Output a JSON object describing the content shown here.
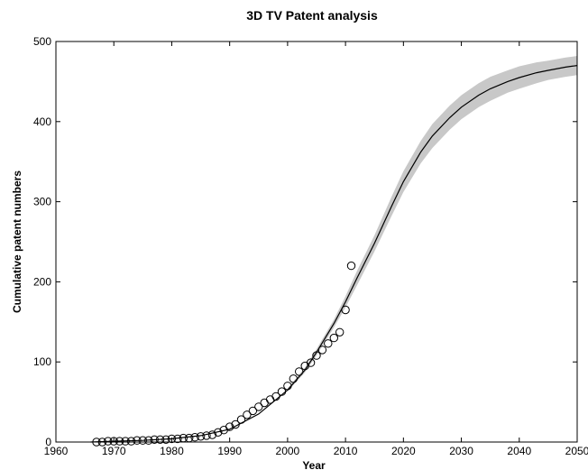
{
  "chart_data": {
    "type": "scatter",
    "title": "3D TV Patent analysis",
    "xlabel": "Year",
    "ylabel": "Cumulative patent numbers",
    "xlim": [
      1960,
      2050
    ],
    "ylim": [
      0,
      500
    ],
    "xticks": [
      1960,
      1970,
      1980,
      1990,
      2000,
      2010,
      2020,
      2030,
      2040,
      2050
    ],
    "yticks": [
      0,
      100,
      200,
      300,
      400,
      500
    ],
    "grid": false,
    "colors": {
      "band": "#c8c8c8",
      "line": "#000000",
      "marker_edge": "#000000"
    },
    "series": [
      {
        "type": "scatter",
        "x": [
          1967,
          1968,
          1969,
          1970,
          1971,
          1972,
          1973,
          1974,
          1975,
          1976,
          1977,
          1978,
          1979,
          1980,
          1981,
          1982,
          1983,
          1984,
          1985,
          1986,
          1987,
          1988,
          1989,
          1990,
          1991,
          1992,
          1993,
          1994,
          1995,
          1996,
          1997,
          1998,
          1999,
          2000,
          2001,
          2002,
          2003,
          2004,
          2005,
          2006,
          2007,
          2008,
          2009,
          2010,
          2011
        ],
        "y": [
          0,
          0,
          1,
          1,
          1,
          1,
          1,
          2,
          2,
          2,
          3,
          3,
          3,
          4,
          4,
          5,
          5,
          6,
          7,
          8,
          9,
          12,
          15,
          19,
          22,
          28,
          34,
          39,
          44,
          49,
          53,
          57,
          63,
          70,
          79,
          88,
          95,
          99,
          108,
          115,
          123,
          130,
          137,
          165,
          220
        ]
      },
      {
        "type": "line",
        "x": [
          1966,
          1970,
          1975,
          1980,
          1985,
          1990,
          1995,
          2000,
          2003,
          2005,
          2008,
          2010,
          2012,
          2015,
          2018,
          2020,
          2023,
          2025,
          2028,
          2030,
          2033,
          2035,
          2038,
          2040,
          2043,
          2045,
          2048,
          2050
        ],
        "y": [
          0,
          1,
          2,
          4,
          8,
          16,
          35,
          65,
          90,
          112,
          148,
          175,
          205,
          248,
          295,
          325,
          362,
          382,
          405,
          418,
          433,
          441,
          450,
          455,
          461,
          464,
          468,
          470
        ]
      },
      {
        "type": "area",
        "x": [
          2000,
          2003,
          2005,
          2008,
          2010,
          2012,
          2015,
          2018,
          2020,
          2023,
          2025,
          2028,
          2030,
          2033,
          2035,
          2038,
          2040,
          2043,
          2045,
          2048,
          2050
        ],
        "lower": [
          63,
          87,
          108,
          143,
          168,
          196,
          238,
          283,
          312,
          348,
          367,
          390,
          403,
          418,
          426,
          436,
          441,
          448,
          452,
          456,
          458
        ],
        "upper": [
          67,
          93,
          116,
          153,
          182,
          214,
          258,
          307,
          338,
          376,
          397,
          420,
          433,
          448,
          456,
          464,
          469,
          474,
          476,
          480,
          482
        ]
      }
    ]
  }
}
